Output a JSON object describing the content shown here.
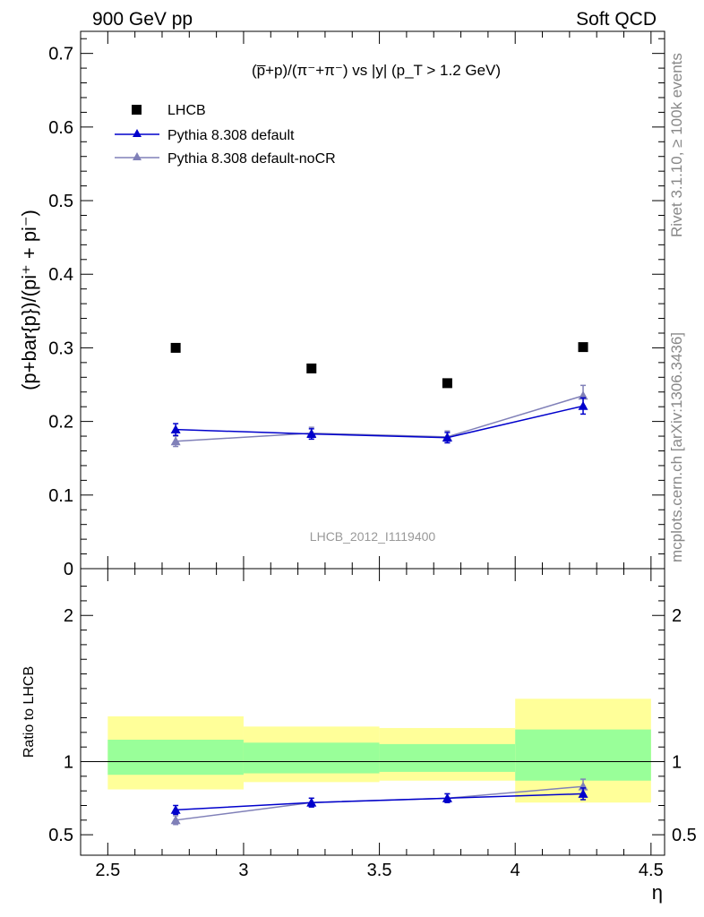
{
  "header": {
    "left": "900 GeV pp",
    "right": "Soft QCD"
  },
  "side_labels": {
    "rivet": "Rivet 3.1.10, ≥ 100k events",
    "source": "mcplots.cern.ch [arXiv:1306.3436]"
  },
  "chart_data": [
    {
      "type": "scatter",
      "title": "(p̅+p)/(π⁻+π⁻) vs |y| (p_T > 1.2 GeV)",
      "ylabel": "(p+bar{p})/(pi⁺ + pi⁻)",
      "xlabel": "",
      "xlim": [
        2.4,
        4.55
      ],
      "ylim": [
        0,
        0.73
      ],
      "yticks": [
        "0",
        "0.1",
        "0.2",
        "0.3",
        "0.4",
        "0.5",
        "0.6",
        "0.7"
      ],
      "watermark": "LHCB_2012_I1119400",
      "legend_position": "top-left",
      "series": [
        {
          "name": "LHCB",
          "style": "square-markers",
          "color": "#000000",
          "x": [
            2.75,
            3.25,
            3.75,
            4.25
          ],
          "y": [
            0.3,
            0.272,
            0.252,
            0.301
          ]
        },
        {
          "name": "Pythia 8.308 default",
          "style": "line-triangles",
          "color": "#0000cc",
          "x": [
            2.75,
            3.25,
            3.75,
            4.25
          ],
          "y": [
            0.189,
            0.183,
            0.178,
            0.221
          ],
          "err": [
            0.008,
            0.007,
            0.007,
            0.011
          ]
        },
        {
          "name": "Pythia 8.308 default-noCR",
          "style": "line-triangles",
          "color": "#8080b8",
          "x": [
            2.75,
            3.25,
            3.75,
            4.25
          ],
          "y": [
            0.173,
            0.184,
            0.179,
            0.235
          ],
          "err": [
            0.007,
            0.008,
            0.008,
            0.014
          ]
        }
      ]
    },
    {
      "type": "scatter",
      "ylabel": "Ratio to LHCB",
      "xlabel": "η",
      "xlim": [
        2.4,
        4.55
      ],
      "ylim": [
        0.36,
        2.32
      ],
      "xticks": [
        "2.5",
        "3",
        "3.5",
        "4",
        "4.5"
      ],
      "yticks": [
        "0.5",
        "1",
        "2"
      ],
      "bands": [
        {
          "x": [
            2.5,
            3.0
          ],
          "inner": [
            0.91,
            1.15
          ],
          "outer": [
            0.81,
            1.31
          ]
        },
        {
          "x": [
            3.0,
            3.5
          ],
          "inner": [
            0.92,
            1.13
          ],
          "outer": [
            0.86,
            1.24
          ]
        },
        {
          "x": [
            3.5,
            4.0
          ],
          "inner": [
            0.93,
            1.12
          ],
          "outer": [
            0.87,
            1.23
          ]
        },
        {
          "x": [
            4.0,
            4.5
          ],
          "inner": [
            0.87,
            1.22
          ],
          "outer": [
            0.72,
            1.43
          ]
        }
      ],
      "band_colors": {
        "inner": "#99ff99",
        "outer": "#ffff99"
      },
      "series": [
        {
          "name": "Pythia 8.308 default",
          "color": "#0000cc",
          "x": [
            2.75,
            3.25,
            3.75,
            4.25
          ],
          "y": [
            0.67,
            0.72,
            0.75,
            0.78
          ],
          "err": [
            0.03,
            0.03,
            0.03,
            0.04
          ]
        },
        {
          "name": "Pythia 8.308 default-noCR",
          "color": "#8080b8",
          "x": [
            2.75,
            3.25,
            3.75,
            4.25
          ],
          "y": [
            0.6,
            0.72,
            0.75,
            0.83
          ],
          "err": [
            0.03,
            0.03,
            0.03,
            0.05
          ]
        }
      ]
    }
  ]
}
